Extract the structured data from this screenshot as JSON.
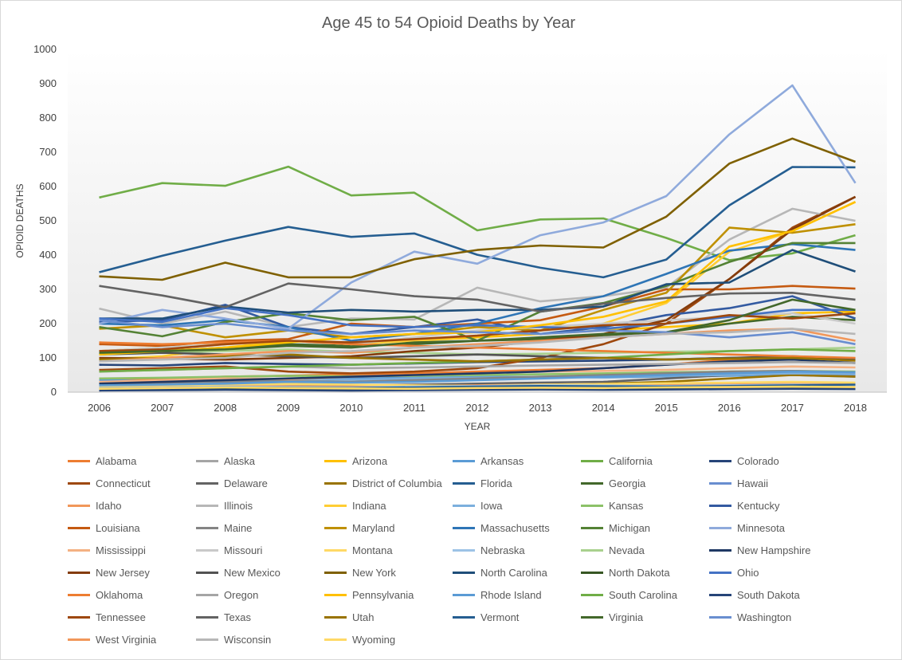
{
  "chart_data": {
    "type": "line",
    "title": "Age 45 to 54 Opioid Deaths by Year",
    "xlabel": "YEAR",
    "ylabel": "OPIOID DEATHS",
    "ylim": [
      0,
      1000
    ],
    "yticks": [
      0,
      100,
      200,
      300,
      400,
      500,
      600,
      700,
      800,
      900,
      1000
    ],
    "grid": false,
    "legend": "bottom",
    "x": [
      "2006",
      "2007",
      "2008",
      "2009",
      "2010",
      "2011",
      "2012",
      "2013",
      "2014",
      "2015",
      "2016",
      "2017",
      "2018"
    ],
    "series": [
      {
        "name": "Alabama",
        "color": "#ED7D31",
        "values": [
          40,
          38,
          45,
          48,
          52,
          55,
          60,
          65,
          70,
          80,
          95,
          100,
          98
        ]
      },
      {
        "name": "Alaska",
        "color": "#A5A5A5",
        "values": [
          15,
          14,
          16,
          18,
          17,
          16,
          15,
          18,
          19,
          20,
          22,
          25,
          24
        ]
      },
      {
        "name": "Arizona",
        "color": "#FFC000",
        "values": [
          120,
          130,
          140,
          150,
          145,
          150,
          160,
          170,
          180,
          190,
          200,
          230,
          235
        ]
      },
      {
        "name": "Arkansas",
        "color": "#5B9BD5",
        "values": [
          35,
          32,
          36,
          38,
          40,
          42,
          45,
          44,
          43,
          46,
          48,
          50,
          45
        ]
      },
      {
        "name": "California",
        "color": "#70AD47",
        "values": [
          568,
          610,
          602,
          658,
          574,
          582,
          472,
          504,
          507,
          450,
          385,
          405,
          458
        ]
      },
      {
        "name": "Colorado",
        "color": "#264478",
        "values": [
          80,
          78,
          85,
          82,
          80,
          84,
          88,
          90,
          92,
          95,
          100,
          102,
          98
        ]
      },
      {
        "name": "Connecticut",
        "color": "#9E480E",
        "values": [
          65,
          70,
          75,
          60,
          55,
          60,
          70,
          100,
          140,
          200,
          330,
          480,
          570
        ]
      },
      {
        "name": "Delaware",
        "color": "#636363",
        "values": [
          20,
          22,
          25,
          24,
          20,
          22,
          25,
          28,
          30,
          40,
          50,
          55,
          50
        ]
      },
      {
        "name": "District of Columbia",
        "color": "#997300",
        "values": [
          10,
          12,
          15,
          14,
          13,
          12,
          11,
          15,
          25,
          30,
          40,
          50,
          45
        ]
      },
      {
        "name": "Florida",
        "color": "#255E91",
        "values": [
          350,
          398,
          442,
          482,
          453,
          463,
          401,
          363,
          335,
          387,
          545,
          657,
          656
        ]
      },
      {
        "name": "Georgia",
        "color": "#43682B",
        "values": [
          110,
          120,
          130,
          140,
          135,
          140,
          150,
          155,
          165,
          175,
          200,
          220,
          210
        ]
      },
      {
        "name": "Hawaii",
        "color": "#698ED0",
        "values": [
          10,
          12,
          14,
          13,
          12,
          11,
          13,
          14,
          15,
          16,
          15,
          17,
          16
        ]
      },
      {
        "name": "Idaho",
        "color": "#F1975A",
        "values": [
          15,
          16,
          18,
          17,
          16,
          18,
          20,
          22,
          21,
          20,
          22,
          24,
          23
        ]
      },
      {
        "name": "Illinois",
        "color": "#B7B7B7",
        "values": [
          244,
          200,
          235,
          190,
          215,
          212,
          305,
          265,
          280,
          305,
          445,
          535,
          500
        ]
      },
      {
        "name": "Indiana",
        "color": "#FFCD33",
        "values": [
          95,
          105,
          130,
          150,
          140,
          150,
          165,
          180,
          200,
          260,
          410,
          470,
          555
        ]
      },
      {
        "name": "Iowa",
        "color": "#7CAFDD",
        "values": [
          30,
          32,
          35,
          38,
          36,
          40,
          42,
          44,
          46,
          48,
          50,
          55,
          52
        ]
      },
      {
        "name": "Kansas",
        "color": "#8CC168",
        "values": [
          40,
          42,
          45,
          48,
          46,
          48,
          50,
          52,
          55,
          58,
          60,
          62,
          60
        ]
      },
      {
        "name": "Kentucky",
        "color": "#335AA1",
        "values": [
          205,
          210,
          255,
          190,
          170,
          190,
          212,
          170,
          190,
          225,
          245,
          280,
          215
        ]
      },
      {
        "name": "Louisiana",
        "color": "#C55A11",
        "values": [
          140,
          135,
          150,
          155,
          200,
          190,
          200,
          210,
          250,
          300,
          300,
          310,
          302
        ]
      },
      {
        "name": "Maine",
        "color": "#848484",
        "values": [
          25,
          28,
          30,
          32,
          30,
          35,
          40,
          45,
          50,
          55,
          60,
          62,
          58
        ]
      },
      {
        "name": "Maryland",
        "color": "#BF9000",
        "values": [
          185,
          195,
          160,
          180,
          160,
          170,
          190,
          180,
          240,
          290,
          480,
          465,
          490
        ]
      },
      {
        "name": "Massachusetts",
        "color": "#2E75B6",
        "values": [
          200,
          195,
          210,
          190,
          150,
          170,
          200,
          245,
          280,
          345,
          413,
          432,
          415
        ]
      },
      {
        "name": "Michigan",
        "color": "#548235",
        "values": [
          190,
          163,
          205,
          230,
          210,
          220,
          150,
          235,
          260,
          310,
          380,
          435,
          435
        ]
      },
      {
        "name": "Minnesota",
        "color": "#8FAADC",
        "values": [
          200,
          240,
          215,
          185,
          320,
          410,
          375,
          458,
          495,
          572,
          752,
          895,
          610
        ]
      },
      {
        "name": "Mississippi",
        "color": "#F4B183",
        "values": [
          30,
          35,
          40,
          38,
          45,
          50,
          55,
          60,
          62,
          65,
          70,
          75,
          72
        ]
      },
      {
        "name": "Missouri",
        "color": "#C9C9C9",
        "values": [
          120,
          130,
          140,
          150,
          140,
          160,
          180,
          190,
          200,
          210,
          220,
          230,
          200
        ]
      },
      {
        "name": "Montana",
        "color": "#FFD966",
        "values": [
          18,
          20,
          22,
          24,
          22,
          20,
          18,
          22,
          24,
          26,
          28,
          30,
          28
        ]
      },
      {
        "name": "Nebraska",
        "color": "#9DC3E6",
        "values": [
          12,
          14,
          16,
          15,
          14,
          16,
          18,
          20,
          19,
          18,
          20,
          22,
          21
        ]
      },
      {
        "name": "Nevada",
        "color": "#A9D18E",
        "values": [
          110,
          115,
          120,
          125,
          118,
          115,
          110,
          112,
          115,
          118,
          120,
          125,
          130
        ]
      },
      {
        "name": "New Hampshire",
        "color": "#1F3864",
        "values": [
          25,
          30,
          35,
          40,
          45,
          50,
          55,
          60,
          70,
          80,
          90,
          95,
          85
        ]
      },
      {
        "name": "New Jersey",
        "color": "#843C0C",
        "values": [
          100,
          98,
          95,
          100,
          105,
          120,
          130,
          150,
          170,
          210,
          330,
          475,
          570
        ]
      },
      {
        "name": "New Mexico",
        "color": "#525252",
        "values": [
          110,
          115,
          110,
          105,
          100,
          105,
          110,
          105,
          100,
          95,
          100,
          105,
          98
        ]
      },
      {
        "name": "New York",
        "color": "#7F6000",
        "values": [
          338,
          328,
          378,
          335,
          335,
          388,
          415,
          428,
          422,
          512,
          667,
          740,
          672
        ]
      },
      {
        "name": "North Carolina",
        "color": "#1F4E79",
        "values": [
          215,
          215,
          250,
          232,
          240,
          235,
          240,
          240,
          250,
          315,
          320,
          415,
          352
        ]
      },
      {
        "name": "North Dakota",
        "color": "#375623",
        "values": [
          8,
          9,
          10,
          9,
          8,
          10,
          12,
          11,
          10,
          12,
          14,
          15,
          14
        ]
      },
      {
        "name": "Ohio",
        "color": "#4472C4",
        "values": [
          215,
          205,
          245,
          225,
          195,
          190,
          195,
          190,
          185,
          200,
          220,
          240,
          240
        ]
      },
      {
        "name": "Oklahoma",
        "color": "#ED7D31",
        "values": [
          145,
          140,
          145,
          150,
          140,
          135,
          130,
          125,
          120,
          115,
          110,
          105,
          100
        ]
      },
      {
        "name": "Oregon",
        "color": "#A5A5A5",
        "values": [
          60,
          65,
          70,
          75,
          70,
          72,
          75,
          78,
          80,
          82,
          85,
          88,
          85
        ]
      },
      {
        "name": "Pennsylvania",
        "color": "#FFC000",
        "values": [
          110,
          120,
          130,
          145,
          160,
          170,
          175,
          195,
          220,
          265,
          425,
          470,
          555
        ]
      },
      {
        "name": "Rhode Island",
        "color": "#5B9BD5",
        "values": [
          20,
          22,
          25,
          30,
          28,
          30,
          35,
          40,
          45,
          50,
          55,
          60,
          58
        ]
      },
      {
        "name": "South Carolina",
        "color": "#70AD47",
        "values": [
          60,
          65,
          70,
          75,
          80,
          85,
          90,
          95,
          100,
          110,
          120,
          125,
          120
        ]
      },
      {
        "name": "South Dakota",
        "color": "#264478",
        "values": [
          5,
          6,
          7,
          6,
          5,
          6,
          7,
          8,
          7,
          8,
          9,
          10,
          9
        ]
      },
      {
        "name": "Tennessee",
        "color": "#9E480E",
        "values": [
          120,
          125,
          140,
          150,
          145,
          155,
          165,
          180,
          195,
          200,
          225,
          215,
          230
        ]
      },
      {
        "name": "Texas",
        "color": "#636363",
        "values": [
          310,
          282,
          248,
          317,
          300,
          280,
          270,
          235,
          258,
          275,
          288,
          290,
          270
        ]
      },
      {
        "name": "Utah",
        "color": "#997300",
        "values": [
          95,
          100,
          105,
          110,
          100,
          95,
          90,
          95,
          100,
          95,
          98,
          100,
          92
        ]
      },
      {
        "name": "Vermont",
        "color": "#255E91",
        "values": [
          10,
          12,
          14,
          13,
          12,
          14,
          16,
          18,
          17,
          16,
          18,
          20,
          22
        ]
      },
      {
        "name": "Virginia",
        "color": "#43682B",
        "values": [
          115,
          120,
          125,
          135,
          130,
          145,
          150,
          160,
          170,
          175,
          210,
          270,
          240
        ]
      },
      {
        "name": "Washington",
        "color": "#698ED0",
        "values": [
          210,
          190,
          200,
          180,
          170,
          180,
          175,
          170,
          180,
          175,
          160,
          175,
          140
        ]
      },
      {
        "name": "West Virginia",
        "color": "#F1975A",
        "values": [
          90,
          100,
          110,
          120,
          115,
          130,
          140,
          150,
          160,
          170,
          180,
          185,
          150
        ]
      },
      {
        "name": "Wisconsin",
        "color": "#B7B7B7",
        "values": [
          90,
          95,
          100,
          115,
          120,
          130,
          135,
          145,
          160,
          170,
          175,
          185,
          170
        ]
      },
      {
        "name": "Wyoming",
        "color": "#FFD966",
        "values": [
          10,
          12,
          14,
          12,
          11,
          10,
          12,
          13,
          12,
          14,
          15,
          16,
          15
        ]
      }
    ]
  }
}
